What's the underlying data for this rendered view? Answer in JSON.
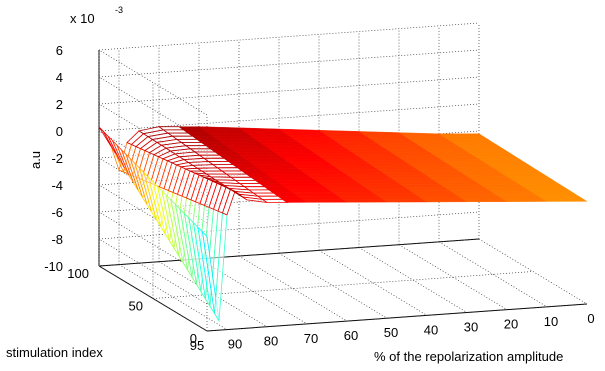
{
  "chart_data": {
    "type": "surface",
    "title": "",
    "xlabel": "% of the repolarization amplitude",
    "ylabel": "stimulation index",
    "zlabel": "a.u",
    "exponent_label": "x 10",
    "exponent_power": "-3",
    "x_ticks": [
      "0",
      "10",
      "20",
      "30",
      "40",
      "50",
      "60",
      "70",
      "80",
      "90",
      "95"
    ],
    "y_ticks": [
      "0",
      "50",
      "100"
    ],
    "z_ticks": [
      "6",
      "4",
      "2",
      "0",
      "-2",
      "-4",
      "-6",
      "-8",
      "-10"
    ],
    "xlim": [
      0,
      95
    ],
    "ylim": [
      0,
      100
    ],
    "zlim": [
      -10,
      6
    ],
    "x_reversed": true,
    "grid": true,
    "colormap": "jet",
    "profile_x": [
      95,
      92,
      90,
      88,
      85,
      80,
      75,
      70,
      60,
      50,
      40,
      30,
      20,
      10,
      0
    ],
    "profile_z_at_y100": [
      0.3,
      -1.2,
      -3.0,
      -1.0,
      -0.2,
      0.0,
      -0.1,
      -0.2,
      -0.5,
      -0.8,
      -1.1,
      -1.4,
      -1.7,
      -2.0,
      -2.2
    ],
    "profile_z_at_y0": [
      -3.0,
      -9.3,
      -1.5,
      0.2,
      -0.5,
      -0.8,
      -0.9,
      -1.0,
      -1.2,
      -1.4,
      -1.6,
      -1.8,
      -2.0,
      -2.2,
      -2.4
    ]
  }
}
